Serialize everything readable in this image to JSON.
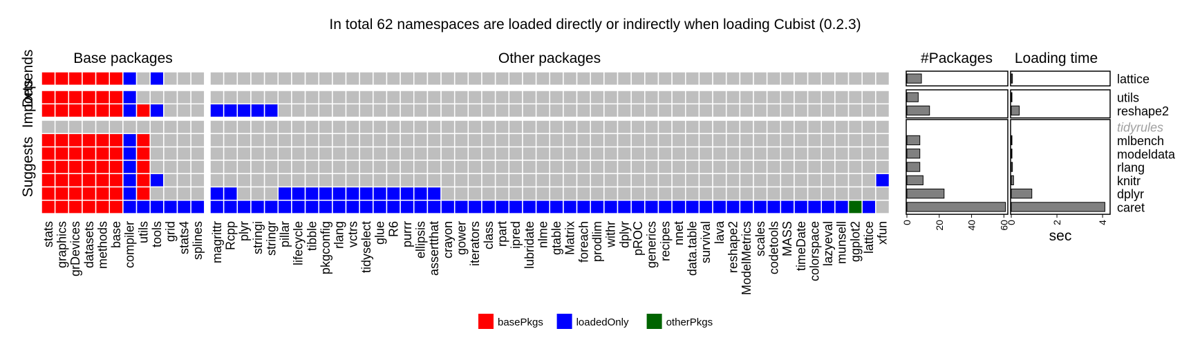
{
  "chart_data": {
    "type": "heatmap",
    "title": "In total 62 namespaces are loaded directly or indirectly when loading Cubist (0.2.3)",
    "panels": [
      "Base packages",
      "Other packages"
    ],
    "groups": [
      "Depends",
      "Imports",
      "Suggests"
    ],
    "base_columns": [
      "stats",
      "graphics",
      "grDevices",
      "datasets",
      "methods",
      "base",
      "compiler",
      "utils",
      "tools",
      "grid",
      "stats4",
      "splines"
    ],
    "other_columns": [
      "magrittr",
      "Rcpp",
      "plyr",
      "stringi",
      "stringr",
      "pillar",
      "lifecycle",
      "tibble",
      "pkgconfig",
      "rlang",
      "vctrs",
      "tidyselect",
      "glue",
      "R6",
      "purrr",
      "ellipsis",
      "assertthat",
      "crayon",
      "gower",
      "iterators",
      "class",
      "rpart",
      "ipred",
      "lubridate",
      "nlme",
      "gtable",
      "Matrix",
      "foreach",
      "prodlim",
      "withr",
      "dplyr",
      "pROC",
      "generics",
      "recipes",
      "nnet",
      "data.table",
      "survival",
      "lava",
      "reshape2",
      "ModelMetrics",
      "scales",
      "codetools",
      "MASS",
      "timeDate",
      "colorspace",
      "lazyeval",
      "munsell",
      "ggplot2",
      "lattice",
      "xfun"
    ],
    "rows": [
      {
        "name": "lattice",
        "group": "Depends",
        "italic": false,
        "packages": 9,
        "time": 0.05,
        "base": "bbbbbbl.l...",
        "other": ".................................................."
      },
      {
        "name": "utils",
        "group": "Imports",
        "italic": false,
        "packages": 7,
        "time": 0.0,
        "base": "bbbbbbl.....",
        "other": ".................................................."
      },
      {
        "name": "reshape2",
        "group": "Imports",
        "italic": false,
        "packages": 14,
        "time": 0.35,
        "base": "bbbbbblbl...",
        "other": "lllll............................................."
      },
      {
        "name": "tidyrules",
        "group": "Suggests",
        "italic": true,
        "packages": null,
        "time": null,
        "base": "............",
        "other": ".................................................."
      },
      {
        "name": "mlbench",
        "group": "Suggests",
        "italic": false,
        "packages": 8,
        "time": 0.03,
        "base": "bbbbbblb....",
        "other": ".................................................."
      },
      {
        "name": "modeldata",
        "group": "Suggests",
        "italic": false,
        "packages": 8,
        "time": 0.03,
        "base": "bbbbbblb....",
        "other": ".................................................."
      },
      {
        "name": "rlang",
        "group": "Suggests",
        "italic": false,
        "packages": 8,
        "time": 0.05,
        "base": "bbbbbblb....",
        "other": ".................................................."
      },
      {
        "name": "knitr",
        "group": "Suggests",
        "italic": false,
        "packages": 10,
        "time": 0.1,
        "base": "bbbbbblbl...",
        "other": ".................................................l"
      },
      {
        "name": "dplyr",
        "group": "Suggests",
        "italic": false,
        "packages": 23,
        "time": 0.9,
        "base": "bbbbbblb....",
        "other": "ll...llllllllllll................................."
      },
      {
        "name": "caret",
        "group": "Suggests",
        "italic": false,
        "packages": 61,
        "time": 4.1,
        "base": "bbbbbbllllll",
        "other": "lllllllllllllllllllllllllllllllllllllllllllllllol."
      }
    ],
    "cell_code": {
      "b": "basePkgs",
      "l": "loadedOnly",
      "o": "otherPkgs",
      ".": "not loaded"
    },
    "bar_panels": [
      {
        "title": "#Packages",
        "xlabel": "",
        "ticks": [
          "0",
          "20",
          "40",
          "60"
        ],
        "xlim": [
          0,
          62
        ]
      },
      {
        "title": "Loading time",
        "xlabel": "sec",
        "ticks": [
          "0",
          "2",
          "4"
        ],
        "xlim": [
          0,
          4.3
        ]
      }
    ],
    "legend": [
      {
        "label": "basePkgs",
        "color": "#ff0000"
      },
      {
        "label": "loadedOnly",
        "color": "#0000ff"
      },
      {
        "label": "otherPkgs",
        "color": "#006400"
      }
    ],
    "colors": {
      "empty": "#bebebe",
      "bar": "#808080"
    }
  }
}
